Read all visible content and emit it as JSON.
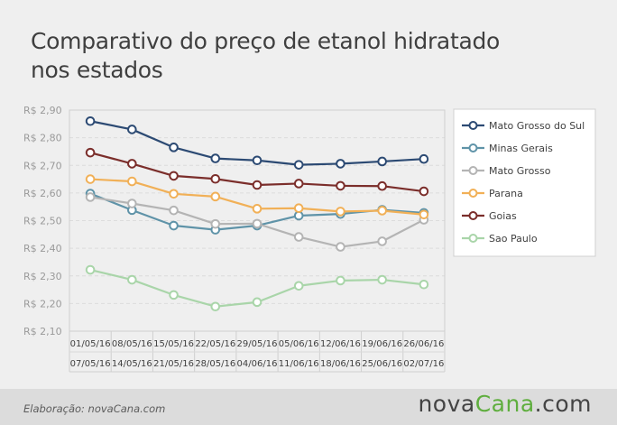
{
  "title_lines": [
    "Comparativo do preço de etanol hidratado",
    "nos estados"
  ],
  "footer": {
    "credit": "Elaboração: novaCana.com",
    "brand_part1": "nova",
    "brand_part2": "Cana",
    "brand_part3": ".com"
  },
  "colors": {
    "brand_accent": "#5fae3e"
  },
  "chart_data": {
    "type": "line",
    "x_top": [
      "01/05/16",
      "08/05/16",
      "15/05/16",
      "22/05/16",
      "29/05/16",
      "05/06/16",
      "12/06/16",
      "19/06/16",
      "26/06/16"
    ],
    "x_bottom": [
      "07/05/16",
      "14/05/16",
      "21/05/16",
      "28/05/16",
      "04/06/16",
      "11/06/16",
      "18/06/16",
      "25/06/16",
      "02/07/16"
    ],
    "ylim": [
      2.1,
      2.9
    ],
    "yticks": [
      2.1,
      2.2,
      2.3,
      2.4,
      2.5,
      2.6,
      2.7,
      2.8,
      2.9
    ],
    "ytick_labels": [
      "R$ 2,10",
      "R$ 2,20",
      "R$ 2,30",
      "R$ 2,40",
      "R$ 2,50",
      "R$ 2,60",
      "R$ 2,70",
      "R$ 2,80",
      "R$ 2,90"
    ],
    "grid": true,
    "legend_position": "right",
    "series": [
      {
        "name": "Mato Grosso do Sul",
        "color": "#2c4a73",
        "values": [
          2.86,
          2.83,
          2.765,
          2.725,
          2.718,
          2.702,
          2.706,
          2.714,
          2.723
        ]
      },
      {
        "name": "Minas Gerais",
        "color": "#5f93a8",
        "values": [
          2.598,
          2.538,
          2.482,
          2.467,
          2.482,
          2.518,
          2.524,
          2.539,
          2.528
        ]
      },
      {
        "name": "Mato Grosso",
        "color": "#b4b4b4",
        "values": [
          2.585,
          2.562,
          2.537,
          2.488,
          2.489,
          2.441,
          2.405,
          2.425,
          2.503
        ]
      },
      {
        "name": "Parana",
        "color": "#f1b057",
        "values": [
          2.65,
          2.642,
          2.597,
          2.587,
          2.543,
          2.545,
          2.533,
          2.536,
          2.522
        ]
      },
      {
        "name": "Goias",
        "color": "#7b2e2b",
        "values": [
          2.746,
          2.706,
          2.662,
          2.651,
          2.629,
          2.634,
          2.626,
          2.625,
          2.606
        ]
      },
      {
        "name": "Sao Paulo",
        "color": "#a9d5a9",
        "values": [
          2.322,
          2.286,
          2.231,
          2.189,
          2.205,
          2.264,
          2.283,
          2.286,
          2.269
        ]
      }
    ]
  }
}
